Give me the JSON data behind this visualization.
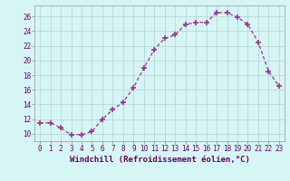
{
  "x": [
    0,
    1,
    2,
    3,
    4,
    5,
    6,
    7,
    8,
    9,
    10,
    11,
    12,
    13,
    14,
    15,
    16,
    17,
    18,
    19,
    20,
    21,
    22,
    23
  ],
  "y": [
    11.5,
    11.5,
    10.8,
    9.9,
    9.9,
    10.3,
    12.0,
    13.3,
    14.3,
    16.3,
    19.0,
    21.5,
    23.0,
    23.5,
    24.9,
    25.2,
    25.2,
    26.5,
    26.5,
    25.9,
    24.9,
    22.5,
    18.5,
    16.5
  ],
  "line_color": "#993399",
  "marker": "P",
  "marker_size": 3,
  "bg_color": "#d6f5f5",
  "grid_color": "#b8d8d8",
  "xlabel": "Windchill (Refroidissement éolien,°C)",
  "xlim": [
    -0.5,
    23.5
  ],
  "ylim": [
    9.0,
    27.5
  ],
  "yticks": [
    10,
    12,
    14,
    16,
    18,
    20,
    22,
    24,
    26
  ],
  "xticks": [
    0,
    1,
    2,
    3,
    4,
    5,
    6,
    7,
    8,
    9,
    10,
    11,
    12,
    13,
    14,
    15,
    16,
    17,
    18,
    19,
    20,
    21,
    22,
    23
  ],
  "tick_label_size": 5.5,
  "xlabel_size": 6.5,
  "figsize": [
    3.2,
    2.0
  ],
  "dpi": 100
}
